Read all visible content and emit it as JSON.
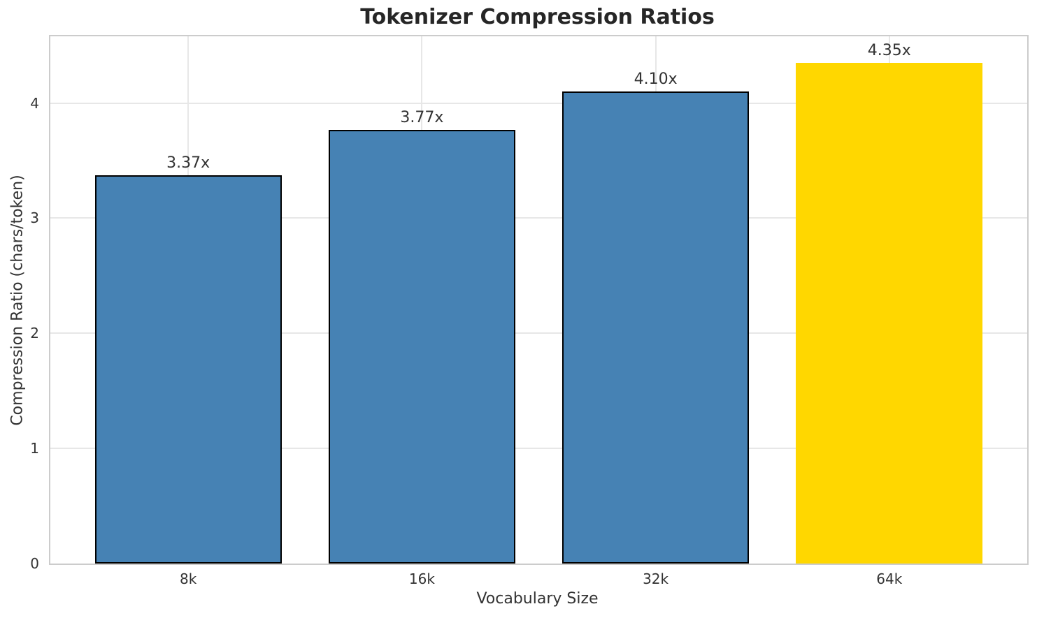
{
  "chart_data": {
    "type": "bar",
    "title": "Tokenizer Compression Ratios",
    "xlabel": "Vocabulary Size",
    "ylabel": "Compression Ratio (chars/token)",
    "categories": [
      "8k",
      "16k",
      "32k",
      "64k"
    ],
    "values": [
      3.37,
      3.77,
      4.1,
      4.35
    ],
    "value_labels": [
      "3.37x",
      "3.77x",
      "4.10x",
      "4.35x"
    ],
    "bar_colors": [
      "#4682B4",
      "#4682B4",
      "#4682B4",
      "#FFD700"
    ],
    "bar_edge_colors": [
      "#000000",
      "#000000",
      "#000000",
      "none"
    ],
    "bar_width_fraction": 0.8,
    "yticks": [
      0,
      1,
      2,
      3,
      4
    ],
    "ylim": [
      0,
      4.58
    ],
    "grid": true,
    "legend": "none",
    "colors": {
      "grid": "#e7e7e7",
      "spine": "#cccccc",
      "text": "#333333",
      "title_text": "#262626",
      "background": "#ffffff"
    }
  }
}
